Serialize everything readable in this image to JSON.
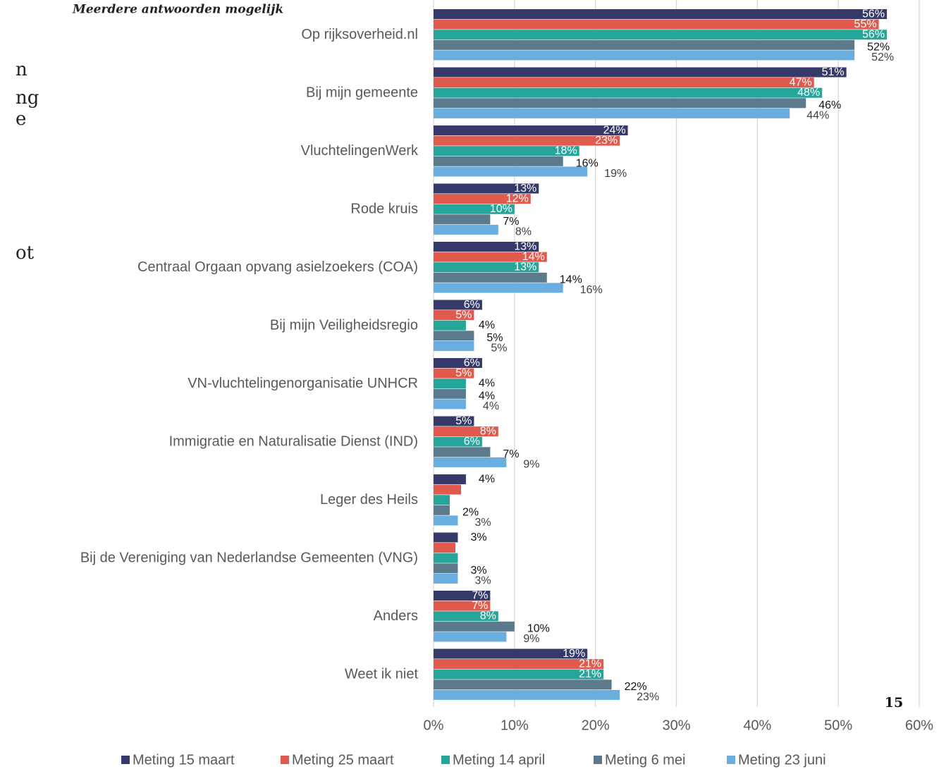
{
  "chart_data": {
    "type": "bar",
    "orientation": "horizontal",
    "subtitle": "Meerdere antwoorden mogelijk",
    "page_number": "15",
    "fragments": [
      "n",
      "ng",
      "e",
      "ot"
    ],
    "categories": [
      "Op rijksoverheid.nl",
      "Bij mijn gemeente",
      "VluchtelingenWerk",
      "Rode kruis",
      "Centraal Orgaan opvang asielzoekers (COA)",
      "Bij mijn Veiligheidsregio",
      "VN-vluchtelingenorganisatie UNHCR",
      "Immigratie en Naturalisatie Dienst (IND)",
      "Leger des Heils",
      "Bij de Vereniging van Nederlandse Gemeenten (VNG)",
      "Anders",
      "Weet ik niet"
    ],
    "series": [
      {
        "name": "Meting 15 maart",
        "color": "#353a6b",
        "values": [
          56,
          51,
          24,
          13,
          13,
          6,
          6,
          5,
          4,
          3,
          7,
          19
        ],
        "value_labels": [
          "56%",
          "51%",
          "24%",
          "13%",
          "13%",
          "6%",
          "6%",
          "5%",
          "4%",
          "3%",
          "7%",
          "19%"
        ]
      },
      {
        "name": "Meting 25 maart",
        "color": "#e05a4e",
        "values": [
          55,
          47,
          23,
          12,
          14,
          5,
          5,
          8,
          3.4,
          2.7,
          7,
          21
        ],
        "value_labels": [
          "55%",
          "47%",
          "23%",
          "12%",
          "14%",
          "5%",
          "5%",
          "8%",
          null,
          null,
          "7%",
          "21%"
        ]
      },
      {
        "name": "Meting 14 april",
        "color": "#26a69a",
        "values": [
          56,
          48,
          18,
          10,
          13,
          4,
          4,
          6,
          2,
          3,
          8,
          21
        ],
        "value_labels": [
          "56%",
          "48%",
          "18%",
          "10%",
          "13%",
          "4%",
          "4%",
          "6%",
          null,
          null,
          "8%",
          "21%"
        ]
      },
      {
        "name": "Meting 6 mei",
        "color": "#5b7a8c",
        "values": [
          52,
          46,
          16,
          7,
          14,
          5,
          4,
          7,
          2,
          3,
          10,
          22
        ],
        "value_labels": [
          "52%",
          "46%",
          "16%",
          "7%",
          "14%",
          "5%",
          "4%",
          "7%",
          "2%",
          "3%",
          "10%",
          "22%"
        ]
      },
      {
        "name": "Meting 23 juni",
        "color": "#6aaee0",
        "values": [
          52,
          44,
          19,
          8,
          16,
          5,
          4,
          9,
          3,
          3,
          9,
          23
        ],
        "value_labels": [
          "52%",
          "44%",
          "19%",
          "8%",
          "16%",
          "5%",
          "4%",
          "9%",
          "3%",
          "3%",
          "9%",
          "23%"
        ]
      }
    ],
    "xlim": [
      0,
      60
    ],
    "xticks": [
      {
        "value": 0,
        "label": "0%"
      },
      {
        "value": 10,
        "label": "10%"
      },
      {
        "value": 20,
        "label": "20%"
      },
      {
        "value": 30,
        "label": "30%"
      },
      {
        "value": 40,
        "label": "40%"
      },
      {
        "value": 50,
        "label": "50%"
      },
      {
        "value": 60,
        "label": "60%"
      }
    ],
    "grid": true,
    "legend": "bottom"
  }
}
